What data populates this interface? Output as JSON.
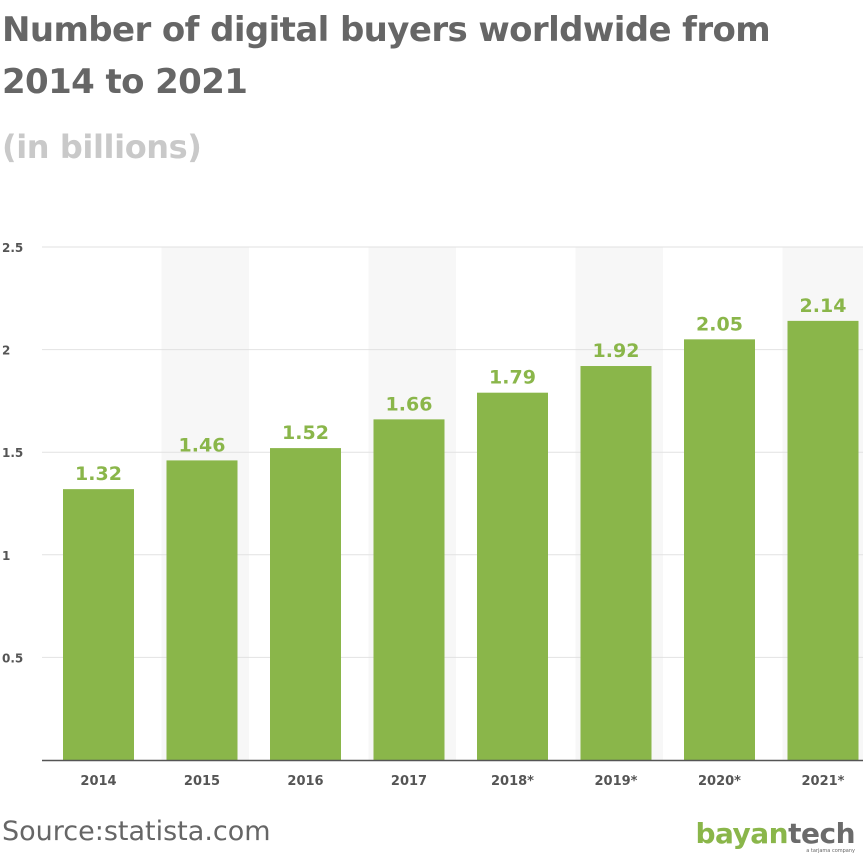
{
  "title": "Number of digital buyers worldwide from 2014 to 2021",
  "subtitle": "(in billions)",
  "source": "Source:statista.com",
  "logo": {
    "part1": "bayan",
    "part2": "tech",
    "tagline": "a tarjama company"
  },
  "colors": {
    "bar": "#8ab64a",
    "label": "#8ab64a",
    "band": "#f7f7f7",
    "grid": "#e2e2e2",
    "axis": "#555555",
    "title": "#666666",
    "subtitle": "#c9c9c9"
  },
  "chart_data": {
    "type": "bar",
    "categories": [
      "2014",
      "2015",
      "2016",
      "2017",
      "2018*",
      "2019*",
      "2020*",
      "2021*"
    ],
    "values": [
      1.32,
      1.46,
      1.52,
      1.66,
      1.79,
      1.92,
      2.05,
      2.14
    ],
    "value_labels": [
      "1.32",
      "1.46",
      "1.52",
      "1.66",
      "1.79",
      "1.92",
      "2.05",
      "2.14"
    ],
    "title": "Number of digital buyers worldwide from 2014 to 2021",
    "subtitle": "(in billions)",
    "xlabel": "",
    "ylabel": "",
    "ylim": [
      0,
      2.5
    ],
    "yticks": [
      0.5,
      1,
      1.5,
      2,
      2.5
    ],
    "ytick_labels": [
      "0.5",
      "1",
      "1.5",
      "2",
      "2.5"
    ],
    "grid": true,
    "legend": "none"
  }
}
